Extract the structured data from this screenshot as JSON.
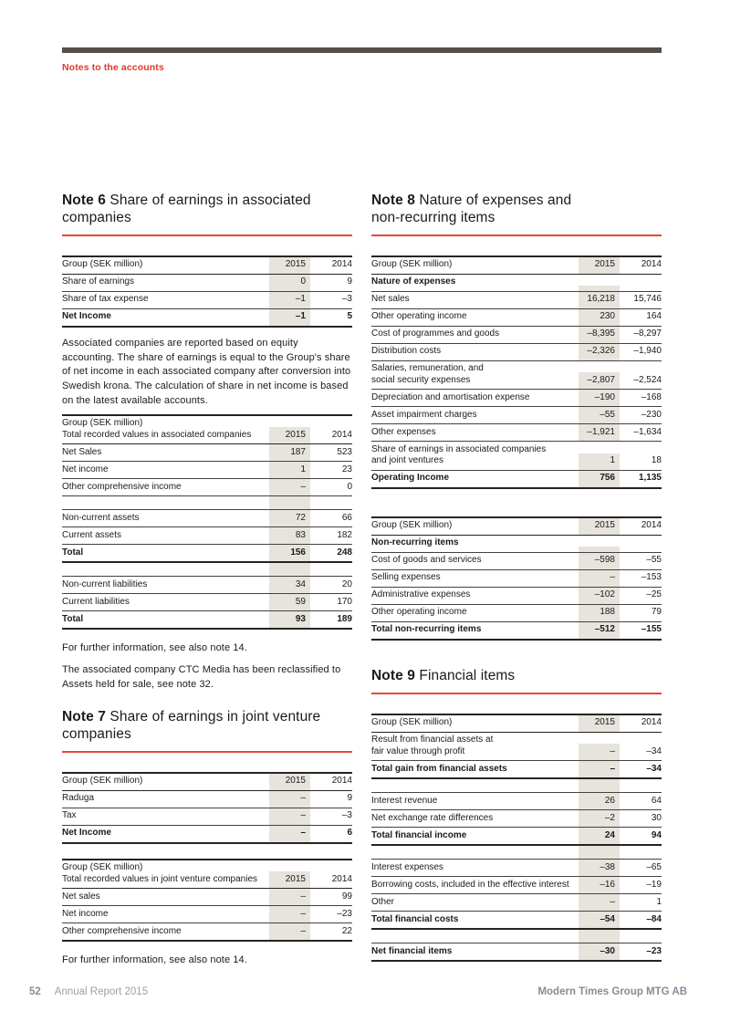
{
  "colors": {
    "accent_red": "#df382d",
    "rule_red": "#e8463a",
    "top_bar_brown": "#584e45",
    "column_shade": "#e7e3dd",
    "footer_gray": "#868c97"
  },
  "header": {
    "section_label": "Notes to the accounts"
  },
  "note6": {
    "number": "Note 6",
    "title_rest": "Share of earnings in associated\ncompanies",
    "table1": {
      "header": {
        "label": "Group (SEK million)",
        "y2015": "2015",
        "y2014": "2014"
      },
      "rows": [
        {
          "label": "Share of earnings",
          "v2015": "0",
          "v2014": "9",
          "style": "normal"
        },
        {
          "label": "Share of tax expense",
          "v2015": "–1",
          "v2014": "–3",
          "style": "normal"
        },
        {
          "label": "Net Income",
          "v2015": "–1",
          "v2014": "5",
          "style": "bold"
        }
      ]
    },
    "paragraph": "Associated companies are reported based on equity accounting. The share of earnings is equal to the Group's share of net income in each associated company after conversion into Swedish krona. The calculation of share in net income is based on the latest available accounts.",
    "table2": {
      "header": {
        "label": "Group (SEK million)\nTotal recorded values in associated companies",
        "y2015": "2015",
        "y2014": "2014"
      },
      "rows": [
        {
          "label": "Net Sales",
          "v2015": "187",
          "v2014": "523",
          "style": "normal"
        },
        {
          "label": "Net income",
          "v2015": "1",
          "v2014": "23",
          "style": "normal"
        },
        {
          "label": "Other comprehensive income",
          "v2015": "–",
          "v2014": "0",
          "style": "normal"
        },
        {
          "style": "spacer"
        },
        {
          "label": "Non-current assets",
          "v2015": "72",
          "v2014": "66",
          "style": "normal"
        },
        {
          "label": "Current assets",
          "v2015": "83",
          "v2014": "182",
          "style": "normal"
        },
        {
          "label": "Total",
          "v2015": "156",
          "v2014": "248",
          "style": "bold"
        },
        {
          "style": "spacer"
        },
        {
          "label": "Non-current liabilities",
          "v2015": "34",
          "v2014": "20",
          "style": "normal"
        },
        {
          "label": "Current liabilities",
          "v2015": "59",
          "v2014": "170",
          "style": "normal"
        },
        {
          "label": "Total",
          "v2015": "93",
          "v2014": "189",
          "style": "bold"
        }
      ]
    },
    "footnote1": "For further information, see also note 14.",
    "footnote2": "The associated company CTC Media has been reclassified to Assets held for sale, see note 32."
  },
  "note7": {
    "number": "Note 7",
    "title_rest": "Share of earnings in joint venture\ncompanies",
    "table1": {
      "header": {
        "label": "Group (SEK million)",
        "y2015": "2015",
        "y2014": "2014"
      },
      "rows": [
        {
          "label": "Raduga",
          "v2015": "–",
          "v2014": "9",
          "style": "normal"
        },
        {
          "label": "Tax",
          "v2015": "–",
          "v2014": "–3",
          "style": "normal"
        },
        {
          "label": "Net Income",
          "v2015": "–",
          "v2014": "6",
          "style": "bold"
        }
      ]
    },
    "table2": {
      "header": {
        "label": "Group (SEK million)\nTotal recorded values in joint venture companies",
        "y2015": "2015",
        "y2014": "2014"
      },
      "rows": [
        {
          "label": "Net sales",
          "v2015": "–",
          "v2014": "99",
          "style": "normal"
        },
        {
          "label": "Net income",
          "v2015": "–",
          "v2014": "–23",
          "style": "normal"
        },
        {
          "label": "Other comprehensive income",
          "v2015": "–",
          "v2014": "22",
          "style": "normal"
        }
      ]
    },
    "footnote1": "For further information, see also note 14."
  },
  "note8": {
    "number": "Note 8",
    "title_rest": "Nature of expenses and\nnon-recurring items",
    "table1": {
      "header": {
        "label": "Group (SEK million)",
        "y2015": "2015",
        "y2014": "2014"
      },
      "rows": [
        {
          "label": "Nature of expenses",
          "v2015": "",
          "v2014": "",
          "style": "subhead"
        },
        {
          "label": "Net sales",
          "v2015": "16,218",
          "v2014": "15,746",
          "style": "normal"
        },
        {
          "label": "Other operating income",
          "v2015": "230",
          "v2014": "164",
          "style": "normal"
        },
        {
          "label": "Cost of programmes and goods",
          "v2015": "–8,395",
          "v2014": "–8,297",
          "style": "normal"
        },
        {
          "label": "Distribution costs",
          "v2015": "–2,326",
          "v2014": "–1,940",
          "style": "normal"
        },
        {
          "label": "Salaries, remuneration, and\nsocial security expenses",
          "v2015": "–2,807",
          "v2014": "–2,524",
          "style": "normal"
        },
        {
          "label": "Depreciation and amortisation expense",
          "v2015": "–190",
          "v2014": "–168",
          "style": "normal"
        },
        {
          "label": "Asset impairment charges",
          "v2015": "–55",
          "v2014": "–230",
          "style": "normal"
        },
        {
          "label": "Other expenses",
          "v2015": "–1,921",
          "v2014": "–1,634",
          "style": "normal"
        },
        {
          "label": "Share of earnings in associated companies\nand joint ventures",
          "v2015": "1",
          "v2014": "18",
          "style": "normal"
        },
        {
          "label": "Operating Income",
          "v2015": "756",
          "v2014": "1,135",
          "style": "bold"
        }
      ]
    },
    "table2": {
      "header": {
        "label": "Group (SEK million)",
        "y2015": "2015",
        "y2014": "2014"
      },
      "rows": [
        {
          "label": "Non-recurring items",
          "v2015": "",
          "v2014": "",
          "style": "subhead"
        },
        {
          "label": "Cost of goods and services",
          "v2015": "–598",
          "v2014": "–55",
          "style": "normal"
        },
        {
          "label": "Selling expenses",
          "v2015": "–",
          "v2014": "–153",
          "style": "normal"
        },
        {
          "label": "Administrative expenses",
          "v2015": "–102",
          "v2014": "–25",
          "style": "normal"
        },
        {
          "label": "Other operating income",
          "v2015": "188",
          "v2014": "79",
          "style": "normal"
        },
        {
          "label": "Total non-recurring items",
          "v2015": "–512",
          "v2014": "–155",
          "style": "bold"
        }
      ]
    }
  },
  "note9": {
    "number": "Note 9",
    "title_rest": "Financial items",
    "table1": {
      "header": {
        "label": "Group (SEK million)",
        "y2015": "2015",
        "y2014": "2014"
      },
      "rows": [
        {
          "label": "Result from financial assets at\nfair value through profit",
          "v2015": "–",
          "v2014": "–34",
          "style": "normal"
        },
        {
          "label": "Total gain from financial assets",
          "v2015": "–",
          "v2014": "–34",
          "style": "bold"
        },
        {
          "style": "spacer"
        },
        {
          "label": "Interest revenue",
          "v2015": "26",
          "v2014": "64",
          "style": "normal"
        },
        {
          "label": "Net exchange rate differences",
          "v2015": "–2",
          "v2014": "30",
          "style": "normal"
        },
        {
          "label": "Total financial income",
          "v2015": "24",
          "v2014": "94",
          "style": "bold"
        },
        {
          "style": "spacer"
        },
        {
          "label": "Interest expenses",
          "v2015": "–38",
          "v2014": "–65",
          "style": "normal"
        },
        {
          "label": "Borrowing costs, included in the effective interest",
          "v2015": "–16",
          "v2014": "–19",
          "style": "normal"
        },
        {
          "label": "Other",
          "v2015": "–",
          "v2014": "1",
          "style": "normal"
        },
        {
          "label": "Total financial costs",
          "v2015": "–54",
          "v2014": "–84",
          "style": "bold"
        },
        {
          "style": "spacer"
        },
        {
          "label": "Net financial items",
          "v2015": "–30",
          "v2014": "–23",
          "style": "bold"
        }
      ]
    }
  },
  "footer": {
    "page_number": "52",
    "report_title": "Annual Report 2015",
    "company": "Modern Times Group MTG AB"
  }
}
